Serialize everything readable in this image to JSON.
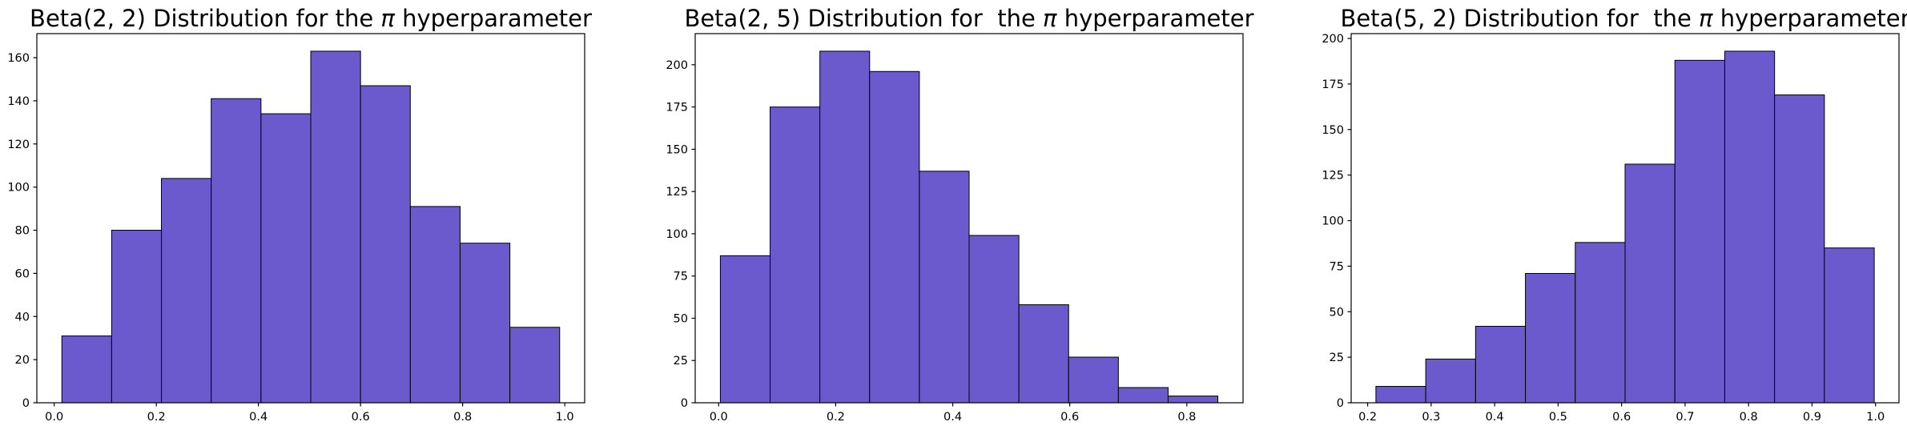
{
  "figure": {
    "background": "#ffffff",
    "bar_fill_color": "#6A5ACD",
    "bar_edge_color": "#000000",
    "axis_color": "#000000",
    "text_color": "#000000"
  },
  "chart_data": [
    {
      "type": "bar",
      "subtype": "histogram",
      "title": "Beta(2, 2) Distribution for the π hyperparameter",
      "title_parts": {
        "prefix": "Beta(2, 2) Distribution for the ",
        "pi": "π",
        "suffix": " hyperparameter"
      },
      "bin_edges": [
        0.015,
        0.1125,
        0.21,
        0.3075,
        0.405,
        0.5025,
        0.6,
        0.6975,
        0.795,
        0.8925,
        0.99
      ],
      "counts": [
        31,
        80,
        104,
        141,
        134,
        163,
        147,
        91,
        74,
        35
      ],
      "xticks": [
        0.0,
        0.2,
        0.4,
        0.6,
        0.8,
        1.0
      ],
      "xtick_labels": [
        "0.0",
        "0.2",
        "0.4",
        "0.6",
        "0.8",
        "1.0"
      ],
      "yticks": [
        0,
        20,
        40,
        60,
        80,
        100,
        120,
        140,
        160
      ],
      "ytick_labels": [
        "0",
        "20",
        "40",
        "60",
        "80",
        "100",
        "120",
        "140",
        "160"
      ],
      "xlim": [
        -0.034,
        1.039
      ],
      "ylim": [
        0,
        171.15
      ],
      "grid": false,
      "legend": null
    },
    {
      "type": "bar",
      "subtype": "histogram",
      "title": "Beta(2, 5) Distribution for  the π hyperparameter",
      "title_parts": {
        "prefix": "Beta(2, 5) Distribution for  the ",
        "pi": "π",
        "suffix": " hyperparameter"
      },
      "bin_edges": [
        0.003,
        0.088,
        0.173,
        0.258,
        0.343,
        0.428,
        0.513,
        0.598,
        0.683,
        0.768,
        0.853
      ],
      "counts": [
        87,
        175,
        208,
        196,
        137,
        99,
        58,
        27,
        9,
        4
      ],
      "xticks": [
        0.0,
        0.2,
        0.4,
        0.6,
        0.8
      ],
      "xtick_labels": [
        "0.0",
        "0.2",
        "0.4",
        "0.6",
        "0.8"
      ],
      "yticks": [
        0,
        25,
        50,
        75,
        100,
        125,
        150,
        175,
        200
      ],
      "ytick_labels": [
        "0",
        "25",
        "50",
        "75",
        "100",
        "125",
        "150",
        "175",
        "200"
      ],
      "xlim": [
        -0.04,
        0.896
      ],
      "ylim": [
        0,
        218.4
      ],
      "grid": false,
      "legend": null
    },
    {
      "type": "bar",
      "subtype": "histogram",
      "title": "Beta(5, 2) Distribution for  the π hyperparameter",
      "title_parts": {
        "prefix": "Beta(5, 2) Distribution for  the ",
        "pi": "π",
        "suffix": " hyperparameter"
      },
      "bin_edges": [
        0.213,
        0.2915,
        0.37,
        0.4485,
        0.527,
        0.6055,
        0.684,
        0.7625,
        0.841,
        0.9195,
        0.998
      ],
      "counts": [
        9,
        24,
        42,
        71,
        88,
        131,
        188,
        193,
        169,
        85
      ],
      "xticks": [
        0.2,
        0.3,
        0.4,
        0.5,
        0.6,
        0.7,
        0.8,
        0.9,
        1.0
      ],
      "xtick_labels": [
        "0.2",
        "0.3",
        "0.4",
        "0.5",
        "0.6",
        "0.7",
        "0.8",
        "0.9",
        "1.0"
      ],
      "yticks": [
        0,
        25,
        50,
        75,
        100,
        125,
        150,
        175,
        200
      ],
      "ytick_labels": [
        "0",
        "25",
        "50",
        "75",
        "100",
        "125",
        "150",
        "175",
        "200"
      ],
      "xlim": [
        0.174,
        1.037
      ],
      "ylim": [
        0,
        202.65
      ],
      "grid": false,
      "legend": null
    }
  ]
}
